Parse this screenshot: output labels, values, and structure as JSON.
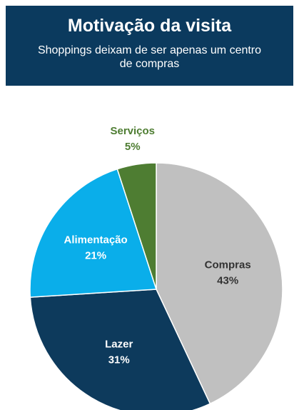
{
  "chart_data": {
    "type": "pie",
    "title": "Motivação da visita",
    "subtitle": "Shoppings deixam de ser apenas um centro de compras",
    "categories": [
      "Compras",
      "Lazer",
      "Alimentação",
      "Serviços"
    ],
    "values": [
      43,
      31,
      21,
      5
    ],
    "value_labels": [
      "43%",
      "31%",
      "21%",
      "5%"
    ],
    "colors": [
      "#c0c0c0",
      "#0d3a5c",
      "#0aaeea",
      "#4e7d32"
    ],
    "label_colors": [
      "#333333",
      "#ffffff",
      "#ffffff",
      "#4e7d32"
    ]
  }
}
